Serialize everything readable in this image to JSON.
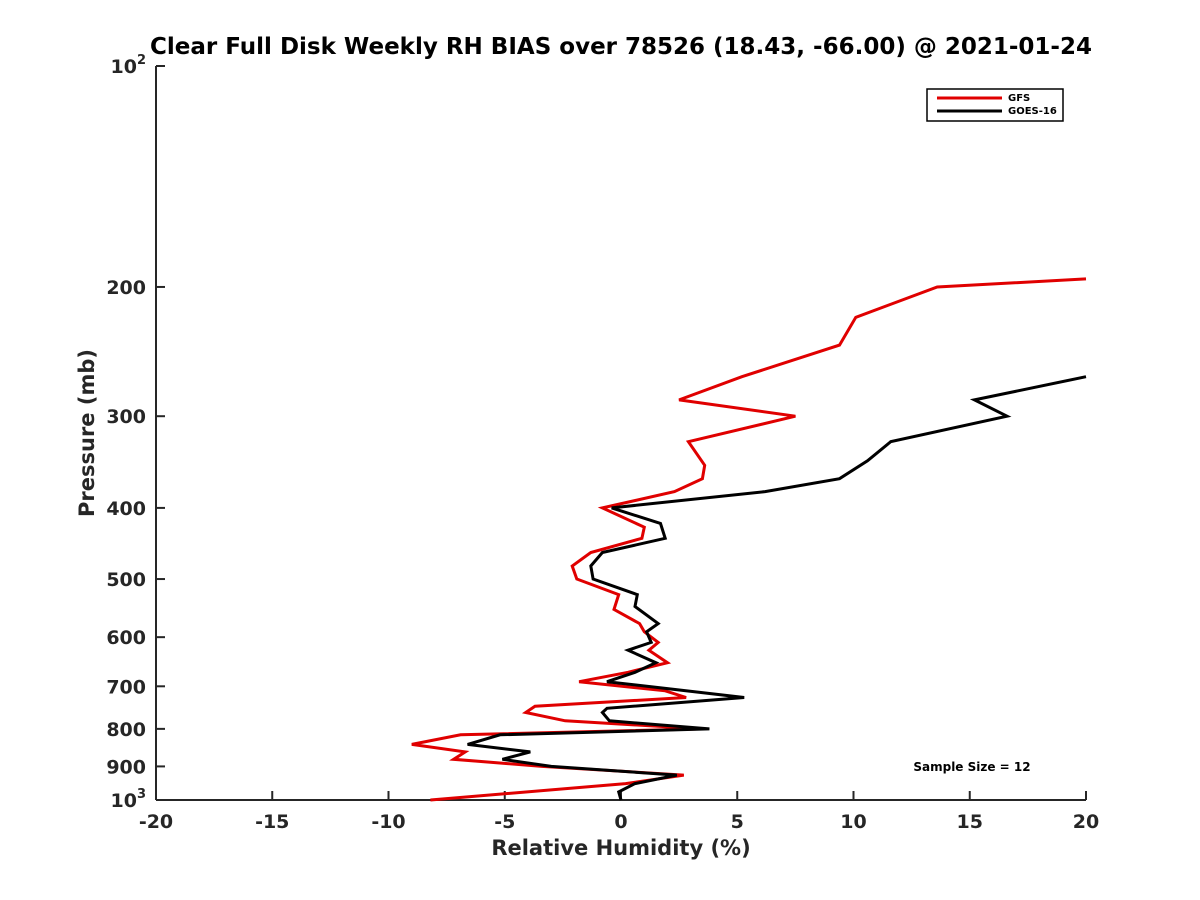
{
  "chart_data": {
    "type": "line",
    "title": "Clear Full Disk Weekly RH BIAS over 78526 (18.43, -66.00) @ 2021-01-24",
    "xlabel": "Relative Humidity (%)",
    "ylabel": "Pressure (mb)",
    "xlim": [
      -20,
      20
    ],
    "ylim": [
      100,
      1000
    ],
    "y_scale": "log",
    "y_reversed": true,
    "x_ticks": [
      "-20",
      "-15",
      "-10",
      "-5",
      "0",
      "5",
      "10",
      "15",
      "20"
    ],
    "y_ticks": [
      {
        "base": "10",
        "exp": "2"
      },
      {
        "base": "200",
        "exp": ""
      },
      {
        "base": "300",
        "exp": ""
      },
      {
        "base": "400",
        "exp": ""
      },
      {
        "base": "500",
        "exp": ""
      },
      {
        "base": "600",
        "exp": ""
      },
      {
        "base": "700",
        "exp": ""
      },
      {
        "base": "800",
        "exp": ""
      },
      {
        "base": "900",
        "exp": ""
      },
      {
        "base": "10",
        "exp": "3"
      }
    ],
    "grid": false,
    "legend_position": "top-right",
    "annotation": "Sample Size = 12",
    "series": [
      {
        "name": "GFS",
        "color": "#e00000",
        "points": [
          [
            20.0,
            195
          ],
          [
            13.6,
            200
          ],
          [
            10.1,
            220
          ],
          [
            9.4,
            240
          ],
          [
            5.2,
            265
          ],
          [
            2.5,
            285
          ],
          [
            7.5,
            300
          ],
          [
            2.9,
            325
          ],
          [
            3.6,
            350
          ],
          [
            3.5,
            365
          ],
          [
            2.3,
            380
          ],
          [
            -0.8,
            400
          ],
          [
            1.0,
            425
          ],
          [
            0.9,
            440
          ],
          [
            -1.3,
            460
          ],
          [
            -2.1,
            480
          ],
          [
            -1.9,
            500
          ],
          [
            -0.1,
            525
          ],
          [
            -0.3,
            550
          ],
          [
            0.8,
            575
          ],
          [
            1.0,
            590
          ],
          [
            1.6,
            610
          ],
          [
            1.2,
            625
          ],
          [
            2.0,
            650
          ],
          [
            0.3,
            670
          ],
          [
            -1.8,
            690
          ],
          [
            1.9,
            710
          ],
          [
            2.8,
            725
          ],
          [
            -3.7,
            745
          ],
          [
            -4.1,
            760
          ],
          [
            -2.4,
            780
          ],
          [
            3.5,
            800
          ],
          [
            -6.9,
            815
          ],
          [
            -9.0,
            840
          ],
          [
            -6.7,
            860
          ],
          [
            -7.2,
            880
          ],
          [
            -3.4,
            900
          ],
          [
            2.7,
            925
          ],
          [
            0.2,
            950
          ],
          [
            -8.2,
            1000
          ]
        ]
      },
      {
        "name": "GOES-16",
        "color": "#000000",
        "points": [
          [
            20.0,
            265
          ],
          [
            15.2,
            285
          ],
          [
            16.6,
            300
          ],
          [
            11.6,
            325
          ],
          [
            10.6,
            345
          ],
          [
            9.4,
            365
          ],
          [
            6.2,
            380
          ],
          [
            -0.4,
            400
          ],
          [
            1.7,
            420
          ],
          [
            1.9,
            440
          ],
          [
            -0.8,
            460
          ],
          [
            -1.3,
            480
          ],
          [
            -1.2,
            500
          ],
          [
            0.7,
            525
          ],
          [
            0.6,
            545
          ],
          [
            1.6,
            575
          ],
          [
            1.1,
            590
          ],
          [
            1.3,
            610
          ],
          [
            0.3,
            625
          ],
          [
            1.5,
            650
          ],
          [
            0.6,
            670
          ],
          [
            -0.6,
            690
          ],
          [
            2.0,
            705
          ],
          [
            5.3,
            725
          ],
          [
            -0.6,
            750
          ],
          [
            -0.8,
            760
          ],
          [
            -0.5,
            780
          ],
          [
            3.8,
            800
          ],
          [
            -5.2,
            815
          ],
          [
            -6.6,
            840
          ],
          [
            -3.9,
            860
          ],
          [
            -5.1,
            880
          ],
          [
            -3.0,
            900
          ],
          [
            2.4,
            925
          ],
          [
            0.6,
            950
          ],
          [
            -0.1,
            975
          ],
          [
            0.0,
            1000
          ]
        ]
      }
    ]
  }
}
